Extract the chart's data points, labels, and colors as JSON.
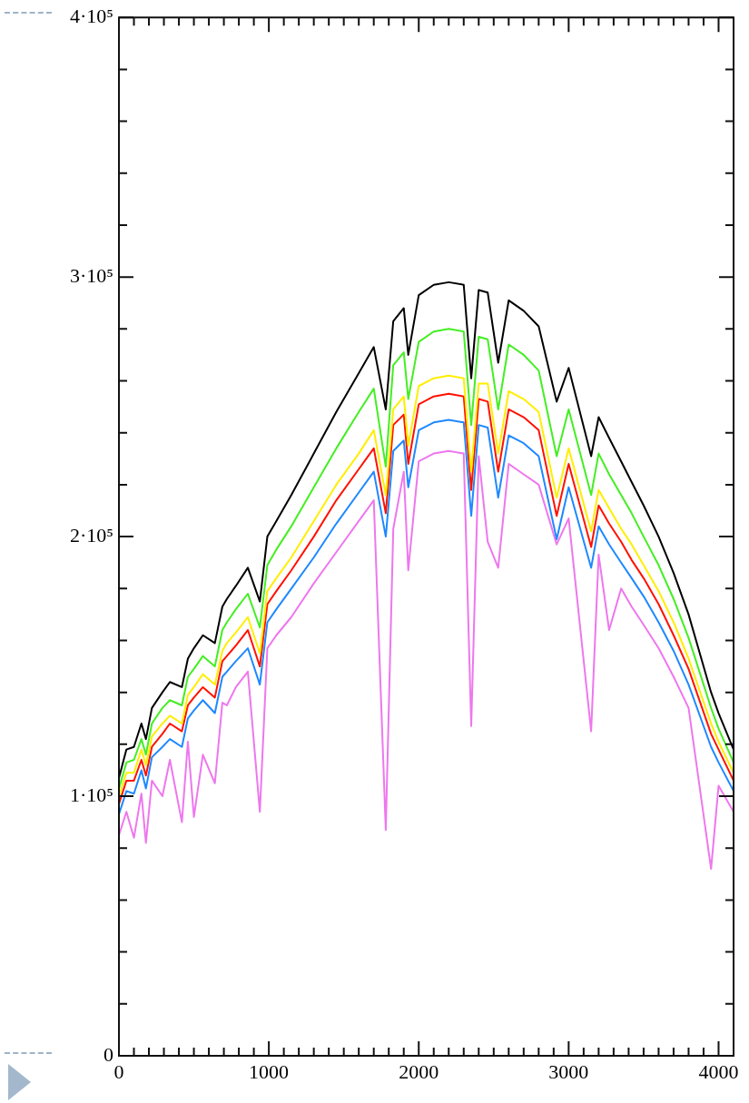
{
  "chart_data": {
    "type": "line",
    "xlim": [
      0,
      4100
    ],
    "ylim": [
      0,
      400000
    ],
    "xticks": [
      0,
      {
        "value": 100,
        "label": null
      },
      {
        "value": 200,
        "label": null
      },
      {
        "value": 300,
        "label": null
      },
      {
        "value": 400,
        "label": null
      },
      {
        "value": 500,
        "label": null
      },
      {
        "value": 600,
        "label": null
      },
      {
        "value": 700,
        "label": null
      },
      {
        "value": 800,
        "label": null
      },
      {
        "value": 900,
        "label": null
      },
      1000,
      {
        "value": 1100,
        "label": null
      },
      {
        "value": 1200,
        "label": null
      },
      {
        "value": 1300,
        "label": null
      },
      {
        "value": 1400,
        "label": null
      },
      {
        "value": 1500,
        "label": null
      },
      {
        "value": 1600,
        "label": null
      },
      {
        "value": 1700,
        "label": null
      },
      {
        "value": 1800,
        "label": null
      },
      {
        "value": 1900,
        "label": null
      },
      2000,
      {
        "value": 2100,
        "label": null
      },
      {
        "value": 2200,
        "label": null
      },
      {
        "value": 2300,
        "label": null
      },
      {
        "value": 2400,
        "label": null
      },
      {
        "value": 2500,
        "label": null
      },
      {
        "value": 2600,
        "label": null
      },
      {
        "value": 2700,
        "label": null
      },
      {
        "value": 2800,
        "label": null
      },
      {
        "value": 2900,
        "label": null
      },
      3000,
      {
        "value": 3100,
        "label": null
      },
      {
        "value": 3200,
        "label": null
      },
      {
        "value": 3300,
        "label": null
      },
      {
        "value": 3400,
        "label": null
      },
      {
        "value": 3500,
        "label": null
      },
      {
        "value": 3600,
        "label": null
      },
      {
        "value": 3700,
        "label": null
      },
      {
        "value": 3800,
        "label": null
      },
      {
        "value": 3900,
        "label": null
      },
      4000,
      {
        "value": 4100,
        "label": null
      }
    ],
    "yticks": [
      0,
      {
        "value": 20000,
        "label": null
      },
      {
        "value": 40000,
        "label": null
      },
      {
        "value": 60000,
        "label": null
      },
      {
        "value": 80000,
        "label": null
      },
      {
        "value": 100000,
        "label": "1·10⁵"
      },
      {
        "value": 120000,
        "label": null
      },
      {
        "value": 140000,
        "label": null
      },
      {
        "value": 160000,
        "label": null
      },
      {
        "value": 180000,
        "label": null
      },
      {
        "value": 200000,
        "label": "2·10⁵"
      },
      {
        "value": 220000,
        "label": null
      },
      {
        "value": 240000,
        "label": null
      },
      {
        "value": 260000,
        "label": null
      },
      {
        "value": 280000,
        "label": null
      },
      {
        "value": 300000,
        "label": "3·10⁵"
      },
      {
        "value": 320000,
        "label": null
      },
      {
        "value": 340000,
        "label": null
      },
      {
        "value": 360000,
        "label": null
      },
      {
        "value": 380000,
        "label": null
      },
      {
        "value": 400000,
        "label": "4·10⁵"
      }
    ],
    "grid": false,
    "legend": false,
    "marker": "none",
    "x": [
      0,
      50,
      100,
      150,
      180,
      220,
      290,
      340,
      420,
      460,
      500,
      560,
      640,
      690,
      720,
      780,
      860,
      940,
      990,
      1050,
      1150,
      1300,
      1450,
      1600,
      1700,
      1780,
      1830,
      1900,
      1930,
      2000,
      2100,
      2200,
      2300,
      2350,
      2400,
      2460,
      2530,
      2600,
      2700,
      2800,
      2920,
      3000,
      3150,
      3200,
      3270,
      3350,
      3420,
      3500,
      3600,
      3700,
      3800,
      3950,
      4000,
      4100
    ],
    "series": [
      {
        "color": "#000000",
        "values": [
          107000,
          118000,
          119000,
          128000,
          122000,
          134000,
          140000,
          144000,
          142000,
          153000,
          157000,
          162000,
          159000,
          173000,
          176000,
          181000,
          188000,
          175000,
          200000,
          206000,
          216000,
          232000,
          248000,
          263000,
          273000,
          249000,
          283000,
          288000,
          270000,
          293000,
          297000,
          298000,
          297000,
          261000,
          295000,
          294000,
          267000,
          291000,
          287000,
          281000,
          252000,
          265000,
          231000,
          246000,
          238000,
          229000,
          221000,
          212000,
          200000,
          186000,
          170000,
          140000,
          132000,
          118000
        ]
      },
      {
        "color": "#44ee22",
        "values": [
          103000,
          113000,
          114000,
          122000,
          116000,
          128000,
          134000,
          137000,
          135000,
          146000,
          149000,
          154000,
          150000,
          164000,
          167000,
          172000,
          178000,
          165000,
          189000,
          195000,
          204000,
          219000,
          234000,
          248000,
          257000,
          227000,
          266000,
          271000,
          253000,
          275000,
          279000,
          280000,
          279000,
          243000,
          277000,
          276000,
          249000,
          274000,
          270000,
          264000,
          231000,
          249000,
          216000,
          232000,
          224000,
          216000,
          209000,
          200000,
          189000,
          176000,
          161000,
          134000,
          126000,
          113000
        ]
      },
      {
        "color": "#ffee00",
        "values": [
          100000,
          109000,
          109000,
          118000,
          112000,
          123000,
          128000,
          131000,
          128000,
          139000,
          142000,
          147000,
          143000,
          156000,
          159000,
          163000,
          169000,
          155000,
          179000,
          184000,
          192000,
          206000,
          220000,
          232000,
          241000,
          216000,
          249000,
          254000,
          235000,
          258000,
          261000,
          262000,
          261000,
          225000,
          259000,
          259000,
          232000,
          256000,
          253000,
          248000,
          215000,
          234000,
          202000,
          218000,
          211000,
          203000,
          197000,
          189000,
          179000,
          167000,
          153000,
          128000,
          121000,
          109000
        ]
      },
      {
        "color": "#ff1100",
        "values": [
          97000,
          106000,
          106000,
          114000,
          108000,
          119000,
          124000,
          128000,
          125000,
          135000,
          138000,
          142000,
          138000,
          152000,
          154000,
          158000,
          164000,
          150000,
          174000,
          179000,
          187000,
          200000,
          214000,
          226000,
          234000,
          209000,
          243000,
          247000,
          228000,
          251000,
          254000,
          255000,
          254000,
          218000,
          253000,
          252000,
          225000,
          249000,
          246000,
          241000,
          208000,
          228000,
          196000,
          212000,
          205000,
          198000,
          191000,
          184000,
          174000,
          162000,
          149000,
          124000,
          118000,
          106000
        ]
      },
      {
        "color": "#1e88ff",
        "values": [
          93000,
          102000,
          101000,
          110000,
          103000,
          115000,
          119000,
          122000,
          119000,
          130000,
          133000,
          137000,
          132000,
          146000,
          148000,
          152000,
          157000,
          143000,
          167000,
          172000,
          180000,
          192000,
          205000,
          217000,
          225000,
          200000,
          233000,
          237000,
          219000,
          241000,
          244000,
          245000,
          244000,
          208000,
          243000,
          242000,
          215000,
          239000,
          236000,
          231000,
          199000,
          219000,
          188000,
          204000,
          197000,
          190000,
          184000,
          177000,
          167000,
          156000,
          143000,
          119000,
          113000,
          102000
        ]
      },
      {
        "color": "#ee77ee",
        "values": [
          85000,
          94000,
          84000,
          101000,
          82000,
          106000,
          100000,
          114000,
          90000,
          121000,
          92000,
          116000,
          105000,
          136000,
          135000,
          142000,
          148000,
          94000,
          157000,
          162000,
          169000,
          182000,
          194000,
          206000,
          214000,
          87000,
          203000,
          225000,
          187000,
          229000,
          232000,
          233000,
          232000,
          127000,
          231000,
          198000,
          188000,
          228000,
          224000,
          220000,
          197000,
          207000,
          125000,
          193000,
          164000,
          180000,
          173000,
          166000,
          157000,
          146000,
          134000,
          72000,
          104000,
          94000
        ]
      }
    ]
  }
}
